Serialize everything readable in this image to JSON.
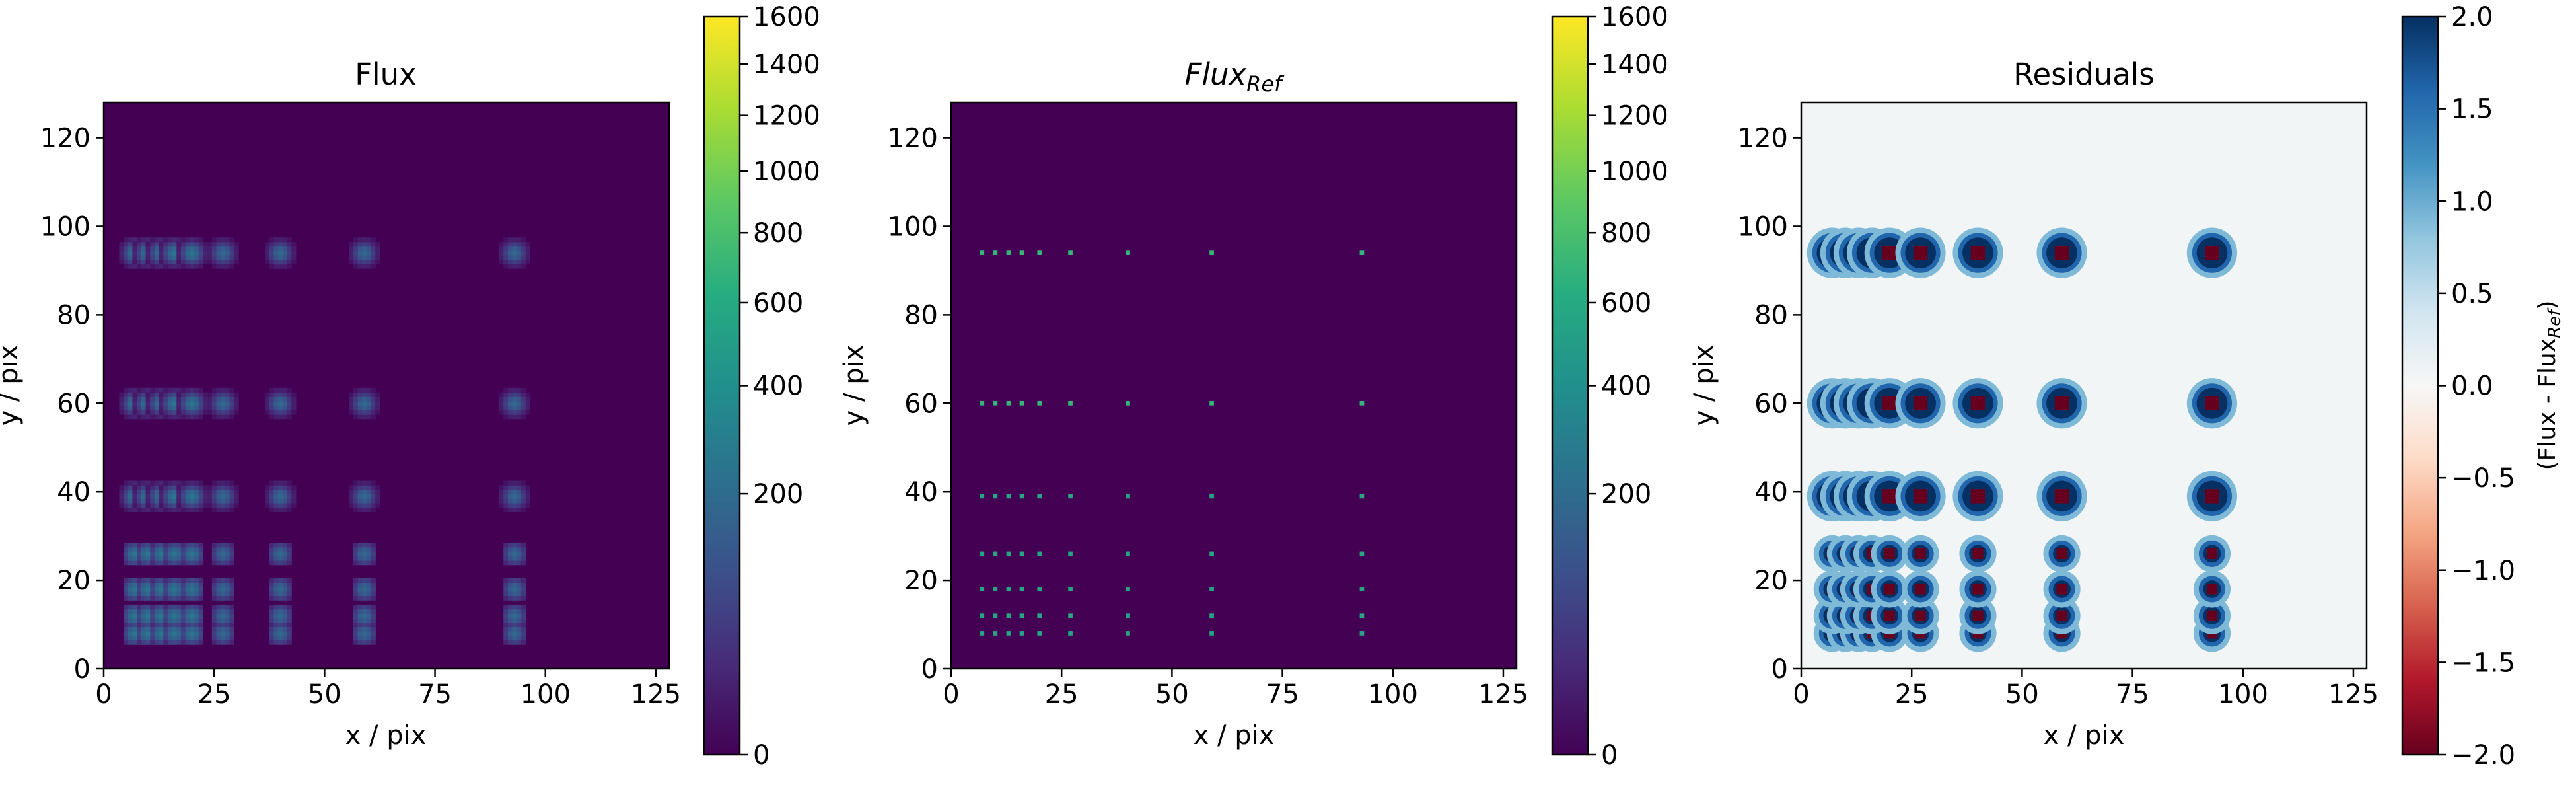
{
  "figure": {
    "panels": [
      {
        "title": "Flux",
        "title_italic": false,
        "xlabel": "x / pix",
        "ylabel": "y / pix"
      },
      {
        "title": "Flux",
        "title_sub": "Ref",
        "title_italic": true,
        "xlabel": "x / pix",
        "ylabel": "y / pix"
      },
      {
        "title": "Residuals",
        "title_italic": false,
        "xlabel": "x / pix",
        "ylabel": "y / pix"
      }
    ],
    "colorbars": [
      {
        "ticks": [
          "0",
          "200",
          "400",
          "600",
          "800",
          "1000",
          "1200",
          "1400",
          "1600"
        ],
        "label": ""
      },
      {
        "ticks": [
          "0",
          "200",
          "400",
          "600",
          "800",
          "1000",
          "1200",
          "1400",
          "1600"
        ],
        "label": ""
      },
      {
        "ticks": [
          "−2.0",
          "−1.5",
          "−1.0",
          "−0.5",
          "0.0",
          "0.5",
          "1.0",
          "1.5",
          "2.0"
        ],
        "label": "(Flux - Flux",
        "label_sub": "Ref",
        "label_end": ")"
      }
    ]
  },
  "chart_data": [
    {
      "type": "heatmap",
      "title": "Flux",
      "xlabel": "x / pix",
      "ylabel": "y / pix",
      "xlim": [
        0,
        128
      ],
      "ylim": [
        0,
        128
      ],
      "xticks": [
        0,
        25,
        50,
        75,
        100,
        125
      ],
      "yticks": [
        0,
        20,
        40,
        60,
        80,
        100,
        120
      ],
      "colormap": "viridis",
      "color_scale": "sqrt",
      "clim": [
        0,
        1600
      ],
      "source_x": [
        7,
        10,
        13,
        16,
        20,
        27,
        40,
        59,
        93
      ],
      "source_y": [
        8,
        12,
        18,
        26,
        39,
        60,
        94
      ],
      "background": 0,
      "peak": 250
    },
    {
      "type": "heatmap",
      "title": "Flux_Ref",
      "xlabel": "x / pix",
      "ylabel": "y / pix",
      "xlim": [
        0,
        128
      ],
      "ylim": [
        0,
        128
      ],
      "xticks": [
        0,
        25,
        50,
        75,
        100,
        125
      ],
      "yticks": [
        0,
        20,
        40,
        60,
        80,
        100,
        120
      ],
      "colormap": "viridis",
      "color_scale": "sqrt",
      "clim": [
        0,
        1600
      ],
      "source_x": [
        7,
        10,
        13,
        16,
        20,
        27,
        40,
        59,
        93
      ],
      "source_y": [
        8,
        12,
        18,
        26,
        39,
        60,
        94
      ],
      "background": 0,
      "peak": 700
    },
    {
      "type": "heatmap",
      "title": "Residuals",
      "xlabel": "x / pix",
      "ylabel": "y / pix",
      "xlim": [
        0,
        128
      ],
      "ylim": [
        0,
        128
      ],
      "xticks": [
        0,
        25,
        50,
        75,
        100,
        125
      ],
      "yticks": [
        0,
        20,
        40,
        60,
        80,
        100,
        120
      ],
      "colormap": "RdBu",
      "clim": [
        -2,
        2
      ],
      "colorbar_label": "(Flux - Flux_Ref)",
      "source_x": [
        7,
        10,
        13,
        16,
        20,
        27,
        40,
        59,
        93
      ],
      "source_y": [
        8,
        12,
        18,
        26,
        39,
        60,
        94
      ],
      "background": 0.05,
      "halo_value": 2.0,
      "core_value": -2.0
    }
  ]
}
